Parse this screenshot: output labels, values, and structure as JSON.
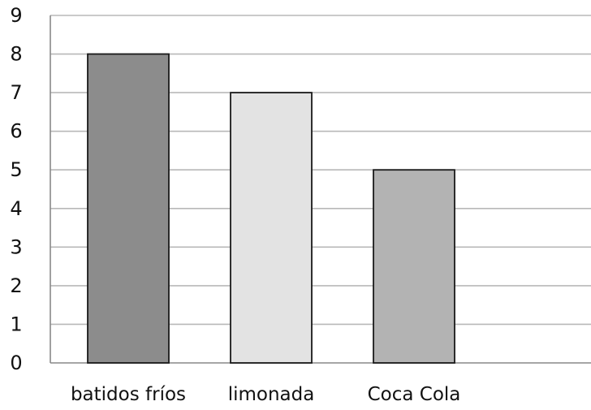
{
  "chart_data": {
    "type": "bar",
    "title": "",
    "xlabel": "",
    "ylabel": "",
    "categories": [
      "batidos fríos",
      "limonada",
      "Coca Cola"
    ],
    "values": [
      8,
      7,
      5
    ],
    "ylim": [
      0,
      9
    ],
    "yticks": [
      "0",
      "1",
      "2",
      "3",
      "4",
      "5",
      "6",
      "7",
      "8",
      "9"
    ],
    "grid": true,
    "legend": "none",
    "colors": {
      "bars": [
        "#8c8c8c",
        "#e3e3e3",
        "#b3b3b3"
      ],
      "bar_border": "#1a1a1a",
      "grid": "#b8b8b8",
      "axis": "#888888"
    }
  }
}
